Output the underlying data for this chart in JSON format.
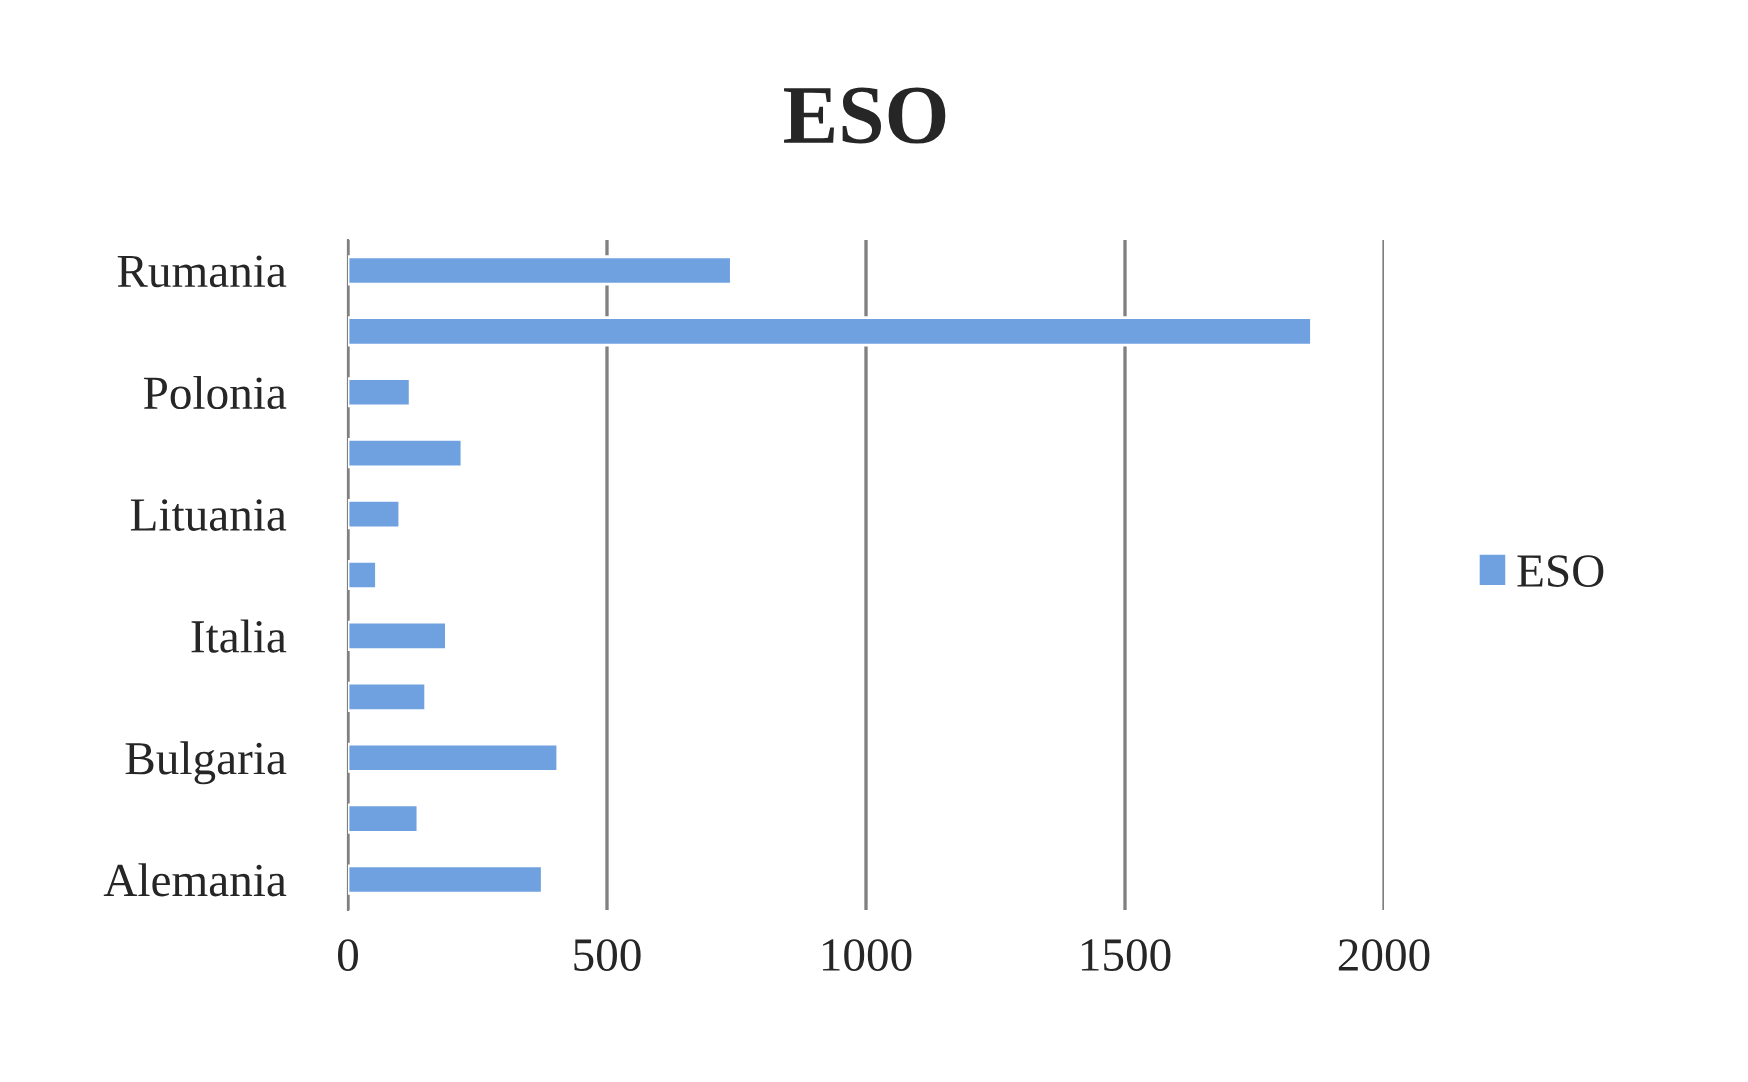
{
  "chart_data": {
    "type": "bar",
    "orientation": "horizontal",
    "title": "ESO",
    "categories": [
      "Rumania",
      null,
      "Polonia",
      null,
      "Lituania",
      null,
      "Italia",
      null,
      "Bulgaria",
      null,
      "Alemania"
    ],
    "series": [
      {
        "name": "ESO",
        "color": "#6fa0e0",
        "values": [
          740,
          1860,
          120,
          220,
          100,
          55,
          190,
          150,
          405,
          135,
          375
        ]
      }
    ],
    "xlim": [
      0,
      2000
    ],
    "xticks": [
      0,
      500,
      1000,
      1500,
      2000
    ],
    "grid": "x",
    "legend": "right"
  }
}
